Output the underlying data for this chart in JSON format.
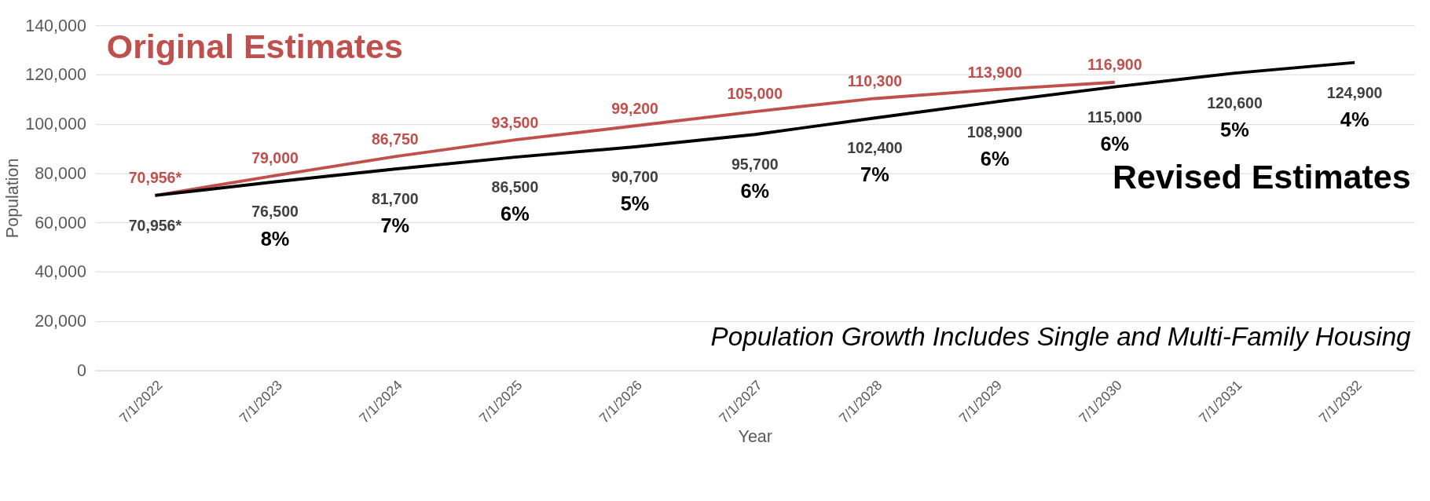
{
  "chart_data": {
    "type": "line",
    "xlabel": "Year",
    "ylabel": "Population",
    "categories": [
      "7/1/2022",
      "7/1/2023",
      "7/1/2024",
      "7/1/2025",
      "7/1/2026",
      "7/1/2027",
      "7/1/2028",
      "7/1/2029",
      "7/1/2030",
      "7/1/2031",
      "7/1/2032"
    ],
    "series": [
      {
        "name": "Original Estimates",
        "color": "#c0504d",
        "values": [
          70956,
          79000,
          86750,
          93500,
          99200,
          105000,
          110300,
          113900,
          116900,
          null,
          null
        ],
        "value_labels": [
          "70,956*",
          "79,000",
          "86,750",
          "93,500",
          "99,200",
          "105,000",
          "110,300",
          "113,900",
          "116,900",
          null,
          null
        ]
      },
      {
        "name": "Revised Estimates",
        "color": "#000000",
        "values": [
          70956,
          76500,
          81700,
          86500,
          90700,
          95700,
          102400,
          108900,
          115000,
          120600,
          124900
        ],
        "value_labels": [
          "70,956*",
          "76,500",
          "81,700",
          "86,500",
          "90,700",
          "95,700",
          "102,400",
          "108,900",
          "115,000",
          "120,600",
          "124,900"
        ]
      }
    ],
    "ylim": [
      0,
      140000
    ],
    "yticks": [
      0,
      {
        "value": 20000,
        "label": "20,000"
      },
      {
        "value": 40000,
        "label": "40,000"
      },
      {
        "value": 60000,
        "label": "60,000"
      },
      {
        "value": 80000,
        "label": "80,000"
      },
      {
        "value": 100000,
        "label": "100,000"
      },
      {
        "value": 120000,
        "label": "120,000"
      },
      {
        "value": 140000,
        "label": "140,000"
      }
    ],
    "grid": "y",
    "marker": "none",
    "line_style": "solid",
    "annotations": [
      {
        "text": "8%",
        "x": "7/1/2023",
        "y": 76500
      },
      {
        "text": "7%",
        "x": "7/1/2024",
        "y": 81700
      },
      {
        "text": "6%",
        "x": "7/1/2025",
        "y": 86500
      },
      {
        "text": "5%",
        "x": "7/1/2026",
        "y": 90700
      },
      {
        "text": "6%",
        "x": "7/1/2027",
        "y": 95700
      },
      {
        "text": "7%",
        "x": "7/1/2028",
        "y": 102400
      },
      {
        "text": "6%",
        "x": "7/1/2029",
        "y": 108900
      },
      {
        "text": "6%",
        "x": "7/1/2030",
        "y": 115000
      },
      {
        "text": "5%",
        "x": "7/1/2031",
        "y": 120600
      },
      {
        "text": "4%",
        "x": "7/1/2032",
        "y": 124900
      },
      "Population Growth Includes Single and Multi-Family Housing"
    ]
  }
}
